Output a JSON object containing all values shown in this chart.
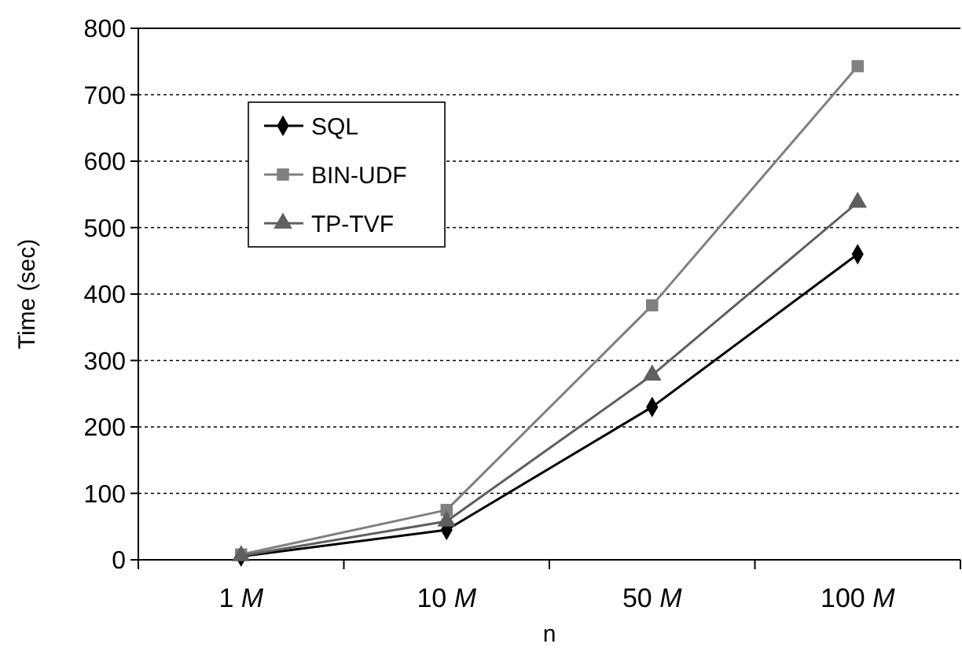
{
  "chart_data": {
    "type": "line",
    "xlabel": "n",
    "ylabel": "Time (sec)",
    "categories": [
      "1 M",
      "10 M",
      "50 M",
      "100 M"
    ],
    "series": [
      {
        "name": "SQL",
        "color": "#000000",
        "marker": "diamond",
        "values": [
          5,
          45,
          230,
          460
        ]
      },
      {
        "name": "BIN-UDF",
        "color": "#808080",
        "marker": "square",
        "values": [
          8,
          75,
          383,
          743
        ]
      },
      {
        "name": "TP-TVF",
        "color": "#5f5f5f",
        "marker": "triangle",
        "values": [
          6,
          58,
          278,
          538
        ]
      }
    ],
    "ylim": [
      0,
      800
    ],
    "yticks": [
      0,
      100,
      200,
      300,
      400,
      500,
      600,
      700,
      800
    ],
    "grid": "y",
    "legend": "top left",
    "line_style": "solid"
  }
}
